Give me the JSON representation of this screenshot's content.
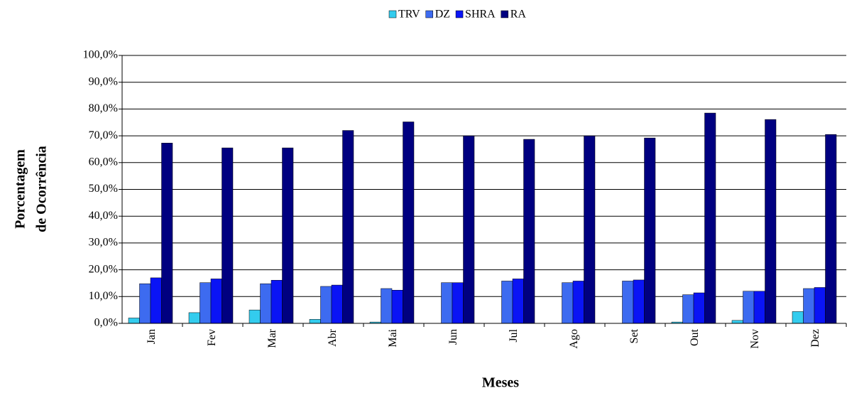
{
  "chart_data": {
    "type": "bar",
    "ylabel": [
      "Porcentagem",
      "de Ocorrência"
    ],
    "xlabel": "Meses",
    "categories": [
      "Jan",
      "Fev",
      "Mar",
      "Abr",
      "Mai",
      "Jun",
      "Jul",
      "Ago",
      "Set",
      "Out",
      "Nov",
      "Dez"
    ],
    "series": [
      {
        "name": "TRV",
        "color": "#33ccee",
        "values": [
          2.0,
          4.0,
          5.0,
          1.5,
          0.5,
          0,
          0,
          0,
          0,
          0.5,
          1.1,
          4.4
        ]
      },
      {
        "name": "DZ",
        "color": "#3d6bf0",
        "values": [
          14.8,
          15.2,
          14.8,
          13.8,
          13.0,
          15.2,
          15.8,
          15.2,
          15.8,
          10.7,
          12.0,
          13.0
        ]
      },
      {
        "name": "SHRA",
        "color": "#0a14f5",
        "values": [
          17.0,
          16.6,
          16.1,
          14.3,
          12.4,
          15.2,
          16.6,
          15.8,
          16.2,
          11.4,
          12.0,
          13.4
        ]
      },
      {
        "name": "RA",
        "color": "#000080",
        "values": [
          67.3,
          65.5,
          65.5,
          72.0,
          75.2,
          70.0,
          68.7,
          70.0,
          69.2,
          78.5,
          76.1,
          70.5
        ]
      }
    ],
    "ylim": [
      0,
      100
    ],
    "yticks": [
      {
        "value": 0,
        "label": "0,0%"
      },
      {
        "value": 10,
        "label": "10,0%"
      },
      {
        "value": 20,
        "label": "20,0%"
      },
      {
        "value": 30,
        "label": "30,0%"
      },
      {
        "value": 40,
        "label": "40,0%"
      },
      {
        "value": 50,
        "label": "50,0%"
      },
      {
        "value": 60,
        "label": "60,0%"
      },
      {
        "value": 70,
        "label": "70,0%"
      },
      {
        "value": 80,
        "label": "80,0%"
      },
      {
        "value": 90,
        "label": "90,0%"
      },
      {
        "value": 100,
        "label": "100,0%"
      }
    ],
    "grid": true,
    "legend": "top"
  }
}
